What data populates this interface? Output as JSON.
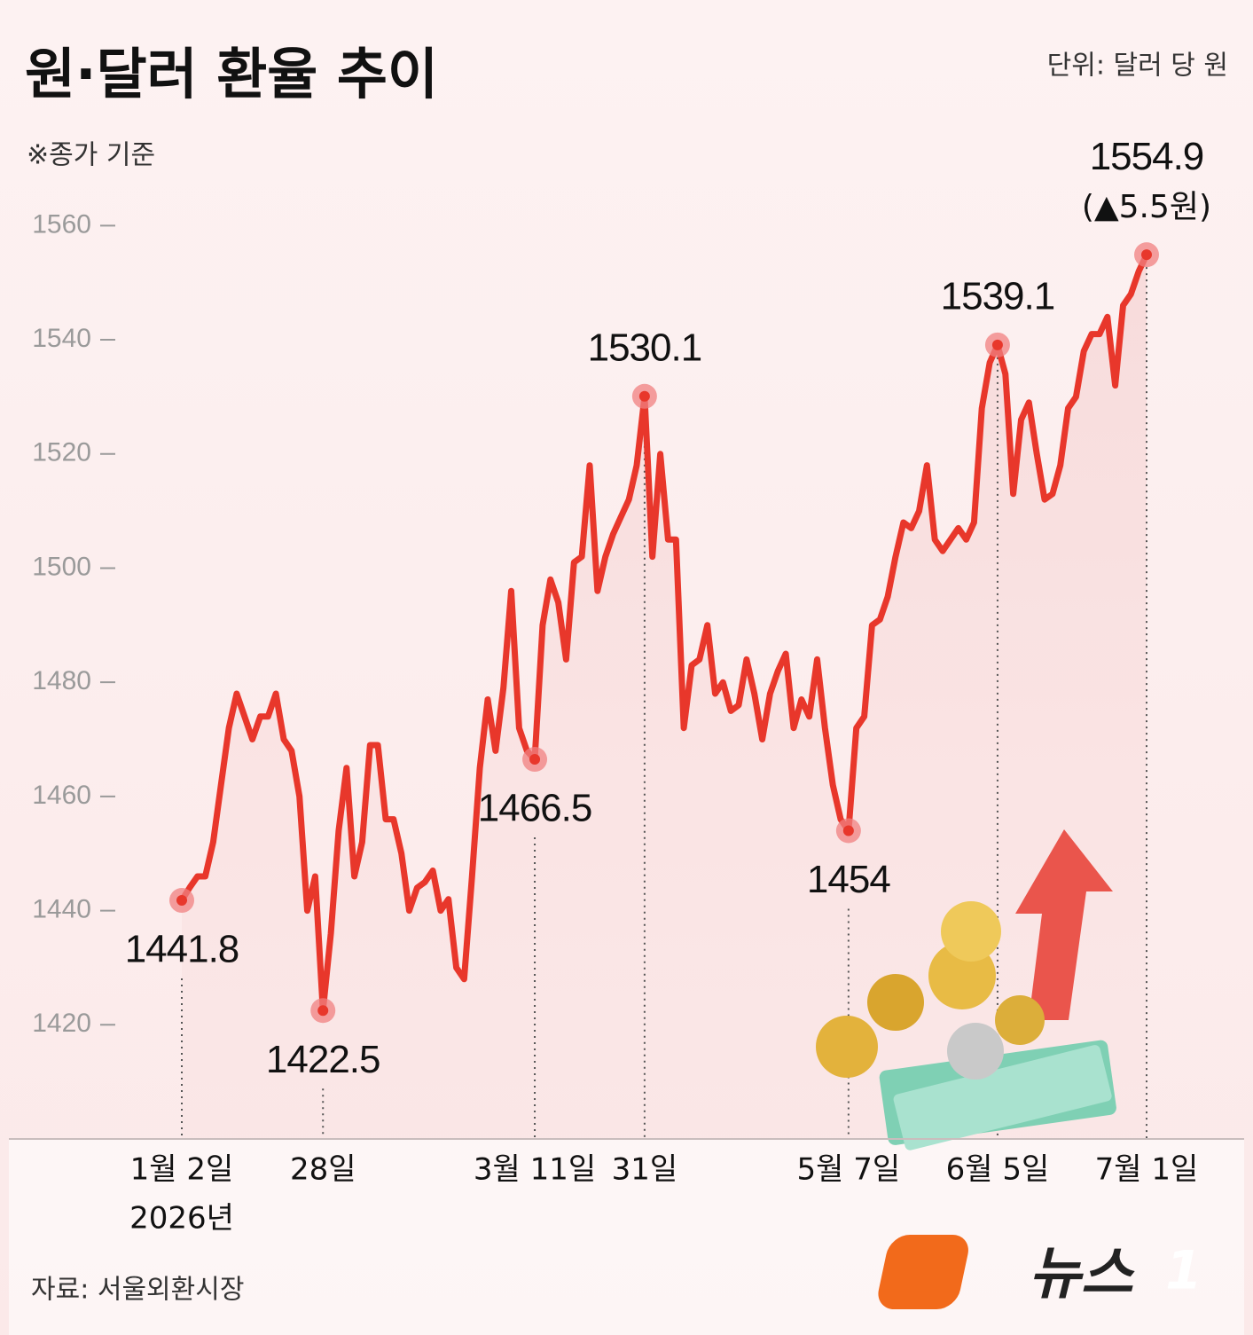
{
  "chart_data": {
    "type": "line",
    "title": "원·달러 환율 추이",
    "unit_label": "단위: 달러 당 원",
    "note": "※종가 기준",
    "source": "자료: 서울외환시장",
    "brand": {
      "text": "뉴스",
      "mark": "1"
    },
    "year_label": "2026년",
    "change_label": "(▲5.5원)",
    "categories": [
      "1월 2일",
      null,
      null,
      null,
      null,
      null,
      null,
      null,
      null,
      null,
      null,
      null,
      null,
      null,
      null,
      null,
      null,
      null,
      "28일",
      null,
      null,
      null,
      null,
      null,
      null,
      null,
      null,
      null,
      null,
      null,
      null,
      null,
      null,
      null,
      null,
      null,
      null,
      null,
      null,
      null,
      null,
      null,
      null,
      null,
      null,
      "3월 11일",
      null,
      null,
      null,
      null,
      null,
      null,
      null,
      null,
      null,
      null,
      null,
      null,
      null,
      "31일",
      null,
      null,
      null,
      null,
      null,
      null,
      null,
      null,
      null,
      null,
      null,
      null,
      null,
      null,
      null,
      null,
      null,
      null,
      null,
      null,
      null,
      null,
      null,
      null,
      null,
      "5월 7일",
      null,
      null,
      null,
      null,
      null,
      null,
      null,
      null,
      null,
      null,
      null,
      null,
      null,
      null,
      null,
      null,
      null,
      null,
      "6월 5일",
      null,
      null,
      null,
      null,
      null,
      null,
      null,
      null,
      null,
      null,
      null,
      null,
      null,
      null,
      null,
      null,
      null,
      null,
      "7월 1일"
    ],
    "series": [
      {
        "color": "#e8372b",
        "values": [
          1441.8,
          1444,
          1446,
          1446,
          1452,
          1462,
          1472,
          1478,
          1474,
          1470,
          1474,
          1474,
          1478,
          1470,
          1468,
          1460,
          1440,
          1446,
          1422.5,
          1436,
          1454,
          1465,
          1446,
          1452,
          1469,
          1469,
          1456,
          1456,
          1450,
          1440,
          1444,
          1445,
          1447,
          1440,
          1442,
          1430,
          1428,
          1446,
          1465,
          1477,
          1468,
          1479,
          1496,
          1472,
          1468,
          1466.5,
          1490,
          1498,
          1494,
          1484,
          1501,
          1502,
          1518,
          1496,
          1502,
          1506,
          1509,
          1512,
          1518,
          1530.1,
          1502,
          1520,
          1505,
          1505,
          1472,
          1483,
          1484,
          1490,
          1478,
          1480,
          1475,
          1476,
          1484,
          1478,
          1470,
          1478,
          1482,
          1485,
          1472,
          1477,
          1474,
          1484,
          1472,
          1462,
          1456,
          1454,
          1472,
          1474,
          1490,
          1491,
          1495,
          1502,
          1508,
          1507,
          1510,
          1518,
          1505,
          1503,
          1505,
          1507,
          1505,
          1508,
          1528,
          1536,
          1539.1,
          1534,
          1513,
          1526,
          1529,
          1520,
          1512,
          1513,
          1518,
          1528,
          1530,
          1538,
          1541,
          1541,
          1544,
          1532,
          1546,
          1548,
          1552,
          1554.9
        ]
      }
    ],
    "ylim": [
      1400,
      1570
    ],
    "yticks": [
      1420,
      1440,
      1460,
      1480,
      1500,
      1520,
      1540,
      1560
    ],
    "grid": false
  }
}
